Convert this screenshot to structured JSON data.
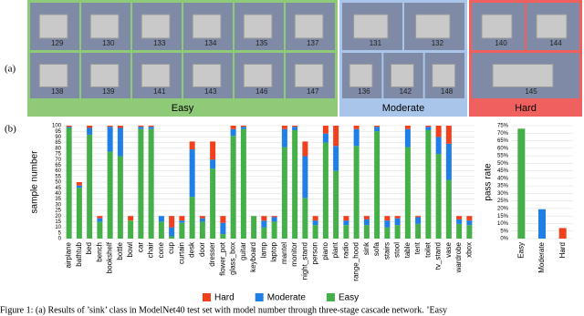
{
  "panel_a": {
    "label": "(a)",
    "groups": [
      {
        "name": "Easy",
        "color": "#8fca78",
        "models": [
          [
            "129",
            "130",
            "133",
            "134",
            "135",
            "137"
          ],
          [
            "138",
            "139",
            "141",
            "143",
            "146",
            "147"
          ]
        ]
      },
      {
        "name": "Moderate",
        "color": "#a9c6ea",
        "models": [
          [
            "131",
            "132"
          ],
          [
            "136",
            "142",
            "148"
          ]
        ]
      },
      {
        "name": "Hard",
        "color": "#f0605e",
        "models": [
          [
            "140",
            "144"
          ],
          [
            "145"
          ]
        ]
      }
    ]
  },
  "panel_b_label": "(b)",
  "chart_data": [
    {
      "type": "stacked_bar",
      "y_label": "sample number",
      "categories": [
        "airplane",
        "bathtub",
        "bed",
        "bench",
        "bookshelf",
        "bottle",
        "bowl",
        "car",
        "chair",
        "cone",
        "cup",
        "curtain",
        "desk",
        "door",
        "dresser",
        "flower_pot",
        "glass_box",
        "guitar",
        "keyboard",
        "lamp",
        "laptop",
        "mantel",
        "monitor",
        "night_stand",
        "person",
        "piano",
        "plant",
        "radio",
        "range_hood",
        "sink",
        "sofa",
        "stairs",
        "stool",
        "table",
        "tent",
        "toilet",
        "tv_stand",
        "vase",
        "wardrobe",
        "xbox"
      ],
      "series": [
        {
          "name": "Easy",
          "color": "#45b04a",
          "values": [
            98,
            45,
            92,
            15,
            77,
            73,
            16,
            97,
            97,
            15,
            2,
            14,
            37,
            15,
            62,
            4,
            91,
            97,
            20,
            10,
            15,
            81,
            96,
            36,
            12,
            85,
            60,
            12,
            82,
            12,
            95,
            10,
            12,
            81,
            13,
            96,
            75,
            52,
            13,
            12
          ]
        },
        {
          "name": "Moderate",
          "color": "#1f7fe6",
          "values": [
            1,
            2,
            6,
            3,
            22,
            25,
            0,
            2,
            2,
            5,
            8,
            2,
            42,
            3,
            8,
            10,
            6,
            2,
            0,
            6,
            4,
            16,
            3,
            37,
            4,
            8,
            22,
            4,
            15,
            5,
            4,
            6,
            6,
            16,
            6,
            3,
            15,
            32,
            4,
            4
          ]
        },
        {
          "name": "Hard",
          "color": "#f0401e",
          "values": [
            1,
            3,
            2,
            2,
            1,
            2,
            4,
            1,
            1,
            0,
            10,
            4,
            7,
            2,
            16,
            6,
            3,
            1,
            0,
            4,
            1,
            3,
            1,
            13,
            4,
            7,
            18,
            4,
            3,
            3,
            1,
            4,
            2,
            3,
            1,
            1,
            10,
            16,
            3,
            4
          ]
        }
      ],
      "ylim": [
        0,
        100
      ],
      "yticks": [
        0,
        5,
        10,
        15,
        20,
        25,
        30,
        35,
        40,
        45,
        50,
        55,
        60,
        65,
        70,
        75,
        80,
        85,
        90,
        95,
        100
      ],
      "grid": true,
      "legend": "bottom"
    },
    {
      "type": "bar",
      "y_label": "pass rate",
      "categories": [
        "Easy",
        "Moderate",
        "Hard"
      ],
      "values": [
        73,
        19.5,
        7
      ],
      "colors": [
        "#45b04a",
        "#1f7fe6",
        "#f0401e"
      ],
      "ylim": [
        0,
        75
      ],
      "yticks": [
        {
          "value": 0,
          "label": "0%"
        },
        {
          "value": 5,
          "label": "5%"
        },
        {
          "value": 10,
          "label": "10%"
        },
        {
          "value": 15,
          "label": "15%"
        },
        {
          "value": 20,
          "label": "20%"
        },
        {
          "value": 25,
          "label": "25%"
        },
        {
          "value": 30,
          "label": "30%"
        },
        {
          "value": 35,
          "label": "35%"
        },
        {
          "value": 40,
          "label": "40%"
        },
        {
          "value": 45,
          "label": "45%"
        },
        {
          "value": 50,
          "label": "50%"
        },
        {
          "value": 55,
          "label": "55%"
        },
        {
          "value": 60,
          "label": "60%"
        },
        {
          "value": 65,
          "label": "65%"
        },
        {
          "value": 70,
          "label": "70%"
        },
        {
          "value": 75,
          "label": "75%"
        }
      ],
      "grid": true
    }
  ],
  "caption": "Figure 1: (a) Results of ’sink’ class in ModelNet40 test set with model number through three-stage cascade network. ’Easy"
}
